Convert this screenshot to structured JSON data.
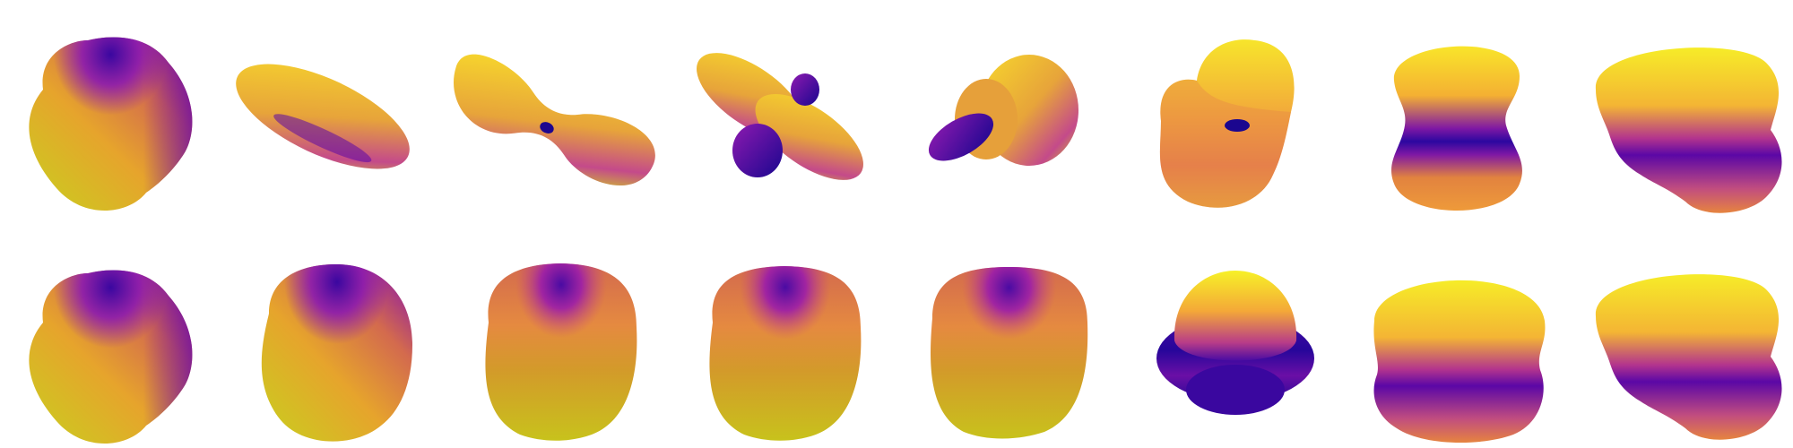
{
  "figure": {
    "rows": 2,
    "columns": 8,
    "colormap": [
      "#0d0887",
      "#5b02a3",
      "#9a179b",
      "#cb4678",
      "#eb7852",
      "#fbb32f",
      "#f0f921"
    ],
    "row_top": [
      {
        "shape": "blob-ellipsoid-dimpled"
      },
      {
        "shape": "tilted-ellipsoid"
      },
      {
        "shape": "tilted-peanut"
      },
      {
        "shape": "four-lobe-cross"
      },
      {
        "shape": "lobed-cluster"
      },
      {
        "shape": "capsule-with-hole"
      },
      {
        "shape": "pinched-peanut-vertical"
      },
      {
        "shape": "flattened-peanut"
      }
    ],
    "row_bottom": [
      {
        "shape": "blob-ellipsoid-dimpled"
      },
      {
        "shape": "blob-ellipsoid"
      },
      {
        "shape": "apple-shape"
      },
      {
        "shape": "apple-shape"
      },
      {
        "shape": "apple-shape"
      },
      {
        "shape": "dome-with-torus"
      },
      {
        "shape": "pinched-peanut-flat"
      },
      {
        "shape": "flattened-peanut"
      }
    ]
  }
}
